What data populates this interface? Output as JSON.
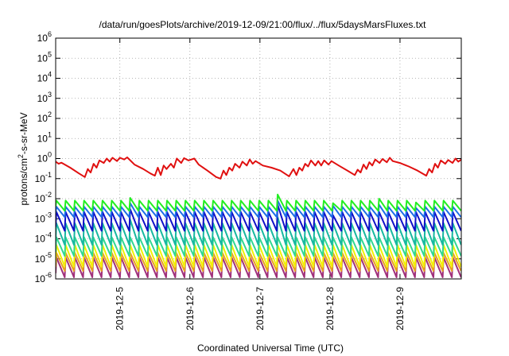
{
  "chart_data": {
    "type": "line",
    "title": "/data/run/goesPlots/archive/2019-12-09/21:00/flux/../flux/5daysMarsFluxes.txt",
    "xlabel": "Coordinated Universal Time (UTC)",
    "ylabel": {
      "pre": "protons/cm",
      "sup": "2",
      "post": "-s-sr-MeV"
    },
    "yscale": "log",
    "ylim": [
      1e-06,
      1000000.0
    ],
    "xlim": [
      "2019-12-04T02:00",
      "2019-12-09T21:00"
    ],
    "y_ticks": [
      {
        "exp": "-6",
        "value": 1e-06
      },
      {
        "exp": "-5",
        "value": 1e-05
      },
      {
        "exp": "-4",
        "value": 0.0001
      },
      {
        "exp": "-3",
        "value": 0.001
      },
      {
        "exp": "-2",
        "value": 0.01
      },
      {
        "exp": "-1",
        "value": 0.1
      },
      {
        "exp": "0",
        "value": 1
      },
      {
        "exp": "1",
        "value": 10
      },
      {
        "exp": "2",
        "value": 100
      },
      {
        "exp": "3",
        "value": 1000
      },
      {
        "exp": "4",
        "value": 10000
      },
      {
        "exp": "5",
        "value": 100000
      },
      {
        "exp": "6",
        "value": 1000000
      }
    ],
    "x_ticks": [
      {
        "label": "2019-12-5",
        "value": "2019-12-05T00:00"
      },
      {
        "label": "2019-12-6",
        "value": "2019-12-06T00:00"
      },
      {
        "label": "2019-12-7",
        "value": "2019-12-07T00:00"
      },
      {
        "label": "2019-12-8",
        "value": "2019-12-08T00:00"
      },
      {
        "label": "2019-12-9",
        "value": "2019-12-09T00:00"
      }
    ],
    "grid": true,
    "legend": "none",
    "series": [
      {
        "color": "#e01010",
        "points": [
          [
            "2019-12-04T02:00",
            0.7
          ],
          [
            "2019-12-04T03:00",
            0.55
          ],
          [
            "2019-12-04T04:00",
            0.62
          ],
          [
            "2019-12-04T07:00",
            0.35
          ],
          [
            "2019-12-04T10:00",
            0.18
          ],
          [
            "2019-12-04T12:00",
            0.12
          ],
          [
            "2019-12-04T13:00",
            0.3
          ],
          [
            "2019-12-04T14:00",
            0.2
          ],
          [
            "2019-12-04T15:00",
            0.55
          ],
          [
            "2019-12-04T16:00",
            0.35
          ],
          [
            "2019-12-04T17:00",
            0.8
          ],
          [
            "2019-12-04T18:30",
            0.6
          ],
          [
            "2019-12-04T19:30",
            1.0
          ],
          [
            "2019-12-04T20:30",
            0.7
          ],
          [
            "2019-12-04T21:30",
            1.1
          ],
          [
            "2019-12-04T23:00",
            0.75
          ],
          [
            "2019-12-05T00:00",
            1.1
          ],
          [
            "2019-12-05T01:30",
            0.9
          ],
          [
            "2019-12-05T02:30",
            1.15
          ],
          [
            "2019-12-05T05:00",
            0.5
          ],
          [
            "2019-12-05T08:00",
            0.3
          ],
          [
            "2019-12-05T10:30",
            0.18
          ],
          [
            "2019-12-05T12:00",
            0.14
          ],
          [
            "2019-12-05T13:00",
            0.35
          ],
          [
            "2019-12-05T14:00",
            0.15
          ],
          [
            "2019-12-05T15:00",
            0.45
          ],
          [
            "2019-12-05T16:00",
            0.3
          ],
          [
            "2019-12-05T17:30",
            0.55
          ],
          [
            "2019-12-05T18:30",
            0.35
          ],
          [
            "2019-12-05T19:30",
            1.0
          ],
          [
            "2019-12-05T21:00",
            0.6
          ],
          [
            "2019-12-05T22:00",
            1.05
          ],
          [
            "2019-12-05T23:30",
            0.8
          ],
          [
            "2019-12-06T01:30",
            1.0
          ],
          [
            "2019-12-06T03:00",
            0.5
          ],
          [
            "2019-12-06T06:00",
            0.25
          ],
          [
            "2019-12-06T09:00",
            0.12
          ],
          [
            "2019-12-06T10:30",
            0.1
          ],
          [
            "2019-12-06T11:30",
            0.25
          ],
          [
            "2019-12-06T12:30",
            0.15
          ],
          [
            "2019-12-06T13:30",
            0.35
          ],
          [
            "2019-12-06T14:30",
            0.25
          ],
          [
            "2019-12-06T15:30",
            0.55
          ],
          [
            "2019-12-06T17:00",
            0.35
          ],
          [
            "2019-12-06T18:00",
            0.7
          ],
          [
            "2019-12-06T19:30",
            0.45
          ],
          [
            "2019-12-06T20:30",
            0.9
          ],
          [
            "2019-12-06T21:30",
            0.55
          ],
          [
            "2019-12-06T22:30",
            0.75
          ],
          [
            "2019-12-07T01:00",
            0.45
          ],
          [
            "2019-12-07T04:00",
            0.35
          ],
          [
            "2019-12-07T07:00",
            0.25
          ],
          [
            "2019-12-07T10:00",
            0.13
          ],
          [
            "2019-12-07T11:30",
            0.3
          ],
          [
            "2019-12-07T12:30",
            0.15
          ],
          [
            "2019-12-07T13:30",
            0.35
          ],
          [
            "2019-12-07T14:30",
            0.25
          ],
          [
            "2019-12-07T15:30",
            0.55
          ],
          [
            "2019-12-07T16:30",
            0.4
          ],
          [
            "2019-12-07T17:30",
            0.8
          ],
          [
            "2019-12-07T19:00",
            0.45
          ],
          [
            "2019-12-07T20:00",
            0.75
          ],
          [
            "2019-12-07T21:00",
            0.45
          ],
          [
            "2019-12-07T22:00",
            0.8
          ],
          [
            "2019-12-07T23:30",
            0.5
          ],
          [
            "2019-12-08T00:30",
            0.75
          ],
          [
            "2019-12-08T03:00",
            0.45
          ],
          [
            "2019-12-08T06:00",
            0.25
          ],
          [
            "2019-12-08T08:30",
            0.15
          ],
          [
            "2019-12-08T09:30",
            0.28
          ],
          [
            "2019-12-08T10:30",
            0.2
          ],
          [
            "2019-12-08T11:30",
            0.5
          ],
          [
            "2019-12-08T12:30",
            0.3
          ],
          [
            "2019-12-08T13:30",
            0.65
          ],
          [
            "2019-12-08T14:30",
            0.45
          ],
          [
            "2019-12-08T15:30",
            0.9
          ],
          [
            "2019-12-08T17:00",
            0.6
          ],
          [
            "2019-12-08T18:00",
            0.95
          ],
          [
            "2019-12-08T19:30",
            0.65
          ],
          [
            "2019-12-08T20:30",
            1.1
          ],
          [
            "2019-12-08T21:30",
            0.75
          ],
          [
            "2019-12-09T00:00",
            0.6
          ],
          [
            "2019-12-09T03:00",
            0.4
          ],
          [
            "2019-12-09T06:00",
            0.25
          ],
          [
            "2019-12-09T09:00",
            0.14
          ],
          [
            "2019-12-09T10:00",
            0.3
          ],
          [
            "2019-12-09T11:00",
            0.2
          ],
          [
            "2019-12-09T12:00",
            0.55
          ],
          [
            "2019-12-09T13:00",
            0.35
          ],
          [
            "2019-12-09T14:00",
            0.8
          ],
          [
            "2019-12-09T15:30",
            0.55
          ],
          [
            "2019-12-09T16:30",
            0.85
          ],
          [
            "2019-12-09T18:00",
            0.6
          ],
          [
            "2019-12-09T19:00",
            1.0
          ],
          [
            "2019-12-09T20:00",
            0.7
          ],
          [
            "2019-12-09T21:00",
            0.9
          ]
        ]
      },
      {
        "color": "#22ee22",
        "sawtooth": {
          "start": "2019-12-04T02:00",
          "end": "2019-12-09T21:00",
          "peaks": 44,
          "high": 0.008,
          "low": 0.0025,
          "spikes": [
            [
              8,
              0.011
            ],
            [
              24,
              0.016
            ],
            [
              30,
              0.006
            ],
            [
              35,
              0.01
            ],
            [
              39,
              0.0065
            ]
          ]
        }
      },
      {
        "color": "#1e6ee8",
        "sawtooth": {
          "start": "2019-12-04T02:00",
          "end": "2019-12-09T21:00",
          "peaks": 44,
          "high": 0.004,
          "low": 0.0012,
          "spikes": [
            [
              8,
              0.006
            ],
            [
              24,
              0.008
            ],
            [
              30,
              0.0045
            ],
            [
              35,
              0.005
            ],
            [
              39,
              0.0035
            ]
          ]
        }
      },
      {
        "color": "#1010c8",
        "sawtooth": {
          "start": "2019-12-04T02:00",
          "end": "2019-12-09T21:00",
          "peaks": 44,
          "high": 0.0022,
          "low": 0.00025,
          "spikes": [
            [
              8,
              0.003
            ],
            [
              24,
              0.005
            ],
            [
              30,
              0.0015
            ]
          ]
        }
      },
      {
        "color": "#18b8a0",
        "sawtooth": {
          "start": "2019-12-04T02:00",
          "end": "2019-12-09T21:00",
          "peaks": 44,
          "high": 0.0006,
          "low": 5e-05,
          "spikes": [
            [
              8,
              0.0009
            ],
            [
              24,
              0.0012
            ]
          ]
        }
      },
      {
        "color": "#30d890",
        "sawtooth": {
          "start": "2019-12-04T02:00",
          "end": "2019-12-09T21:00",
          "peaks": 44,
          "high": 0.00012,
          "low": 1.4e-05,
          "spikes": []
        }
      },
      {
        "color": "#f2f000",
        "sawtooth": {
          "start": "2019-12-04T02:00",
          "end": "2019-12-09T21:00",
          "peaks": 44,
          "high": 5e-05,
          "low": 4e-06,
          "spikes": []
        }
      },
      {
        "color": "#e8a020",
        "sawtooth": {
          "start": "2019-12-04T02:00",
          "end": "2019-12-09T21:00",
          "peaks": 44,
          "high": 2e-05,
          "low": 2.5e-06,
          "spikes": []
        }
      },
      {
        "color": "#a0307a",
        "sawtooth": {
          "start": "2019-12-04T02:00",
          "end": "2019-12-09T21:00",
          "peaks": 44,
          "high": 1.2e-05,
          "low": 1.2e-06,
          "spikes": []
        }
      }
    ]
  }
}
